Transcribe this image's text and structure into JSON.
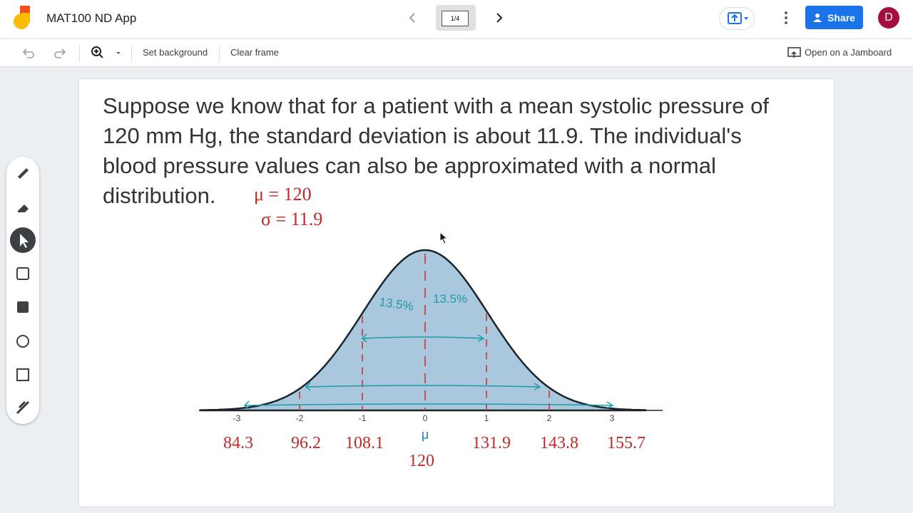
{
  "header": {
    "title": "MAT100 ND App",
    "frame_counter": "1/4",
    "share": "Share",
    "avatar": "D"
  },
  "toolbar": {
    "set_background": "Set background",
    "clear_frame": "Clear frame",
    "open_jamboard": "Open on a Jamboard"
  },
  "frame": {
    "text_lines": [
      "Suppose we know that for a patient with a mean systolic pressure of",
      "120 mm Hg, the standard deviation is about 11.9. The individual's",
      "blood pressure values can also be approximated with a normal",
      "distribution."
    ],
    "annotations": {
      "mean": "μ = 120",
      "sd": "σ = 11.9"
    },
    "left_pct": "13.5%",
    "right_pct": "13.5%",
    "axis_labels": [
      "-3",
      "-2",
      "-1",
      "0",
      "1",
      "2",
      "3"
    ],
    "mu_label": "μ",
    "values": [
      "84.3",
      "96.2",
      "108.1",
      "120",
      "131.9",
      "143.8",
      "155.7"
    ]
  }
}
